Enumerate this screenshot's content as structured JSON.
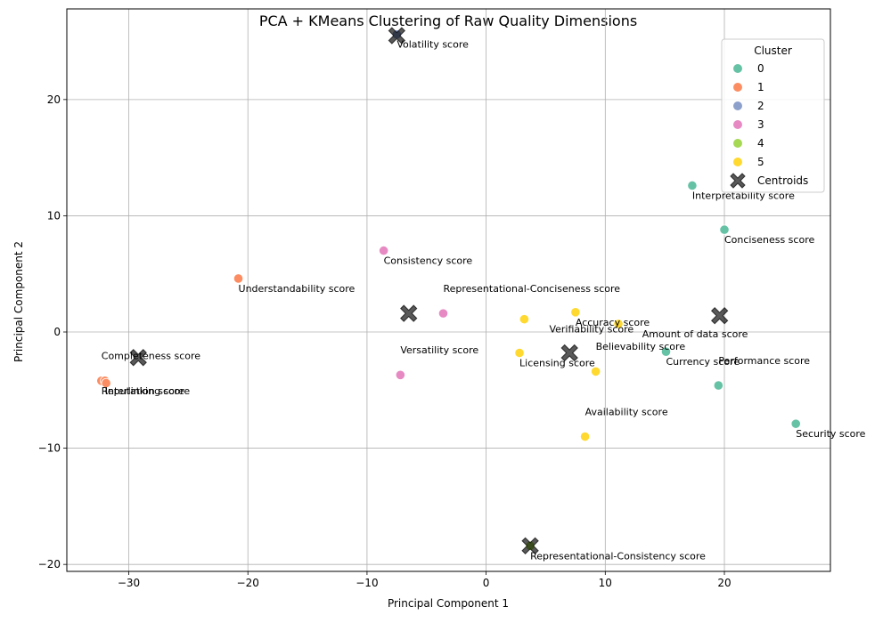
{
  "chart_data": {
    "type": "scatter",
    "title": "PCA + KMeans Clustering of Raw Quality Dimensions",
    "xlabel": "Principal Component 1",
    "ylabel": "Principal Component 2",
    "xlim": [
      -35.2,
      28.9
    ],
    "ylim": [
      -20.6,
      27.8
    ],
    "xticks": [
      -30,
      -20,
      -10,
      0,
      10,
      20
    ],
    "yticks": [
      -20,
      -10,
      0,
      10,
      20
    ],
    "xtick_labels": [
      "−30",
      "−20",
      "−10",
      "0",
      "10",
      "20"
    ],
    "ytick_labels": [
      "−20",
      "−10",
      "0",
      "10",
      "20"
    ],
    "grid": true,
    "legend": {
      "title": "Cluster",
      "placement": "top-right",
      "entries": [
        {
          "label": "0",
          "color": "#66c2a5"
        },
        {
          "label": "1",
          "color": "#fc8d62"
        },
        {
          "label": "2",
          "color": "#8da0cb"
        },
        {
          "label": "3",
          "color": "#e78ac3"
        },
        {
          "label": "4",
          "color": "#a6d854"
        },
        {
          "label": "5",
          "color": "#ffd92f"
        },
        {
          "label": "Centroids",
          "color": "#555555"
        }
      ]
    },
    "cluster_colors": [
      "#66c2a5",
      "#fc8d62",
      "#8da0cb",
      "#e78ac3",
      "#a6d854",
      "#ffd92f"
    ],
    "points": [
      {
        "x": -7.5,
        "y": 25.6,
        "cluster": 2
      },
      {
        "x": 17.3,
        "y": 12.6,
        "cluster": 0
      },
      {
        "x": 20.0,
        "y": 8.8,
        "cluster": 0
      },
      {
        "x": -8.6,
        "y": 7.0,
        "cluster": 3
      },
      {
        "x": -20.8,
        "y": 4.6,
        "cluster": 1
      },
      {
        "x": -3.6,
        "y": 1.6,
        "cluster": 3
      },
      {
        "x": 7.5,
        "y": 1.7,
        "cluster": 5
      },
      {
        "x": 3.2,
        "y": 1.1,
        "cluster": 5
      },
      {
        "x": 11.1,
        "y": 0.7,
        "cluster": 5
      },
      {
        "x": 2.8,
        "y": -1.8,
        "cluster": 5
      },
      {
        "x": 15.1,
        "y": -1.7,
        "cluster": 0
      },
      {
        "x": 9.2,
        "y": -3.4,
        "cluster": 5
      },
      {
        "x": -7.2,
        "y": -3.7,
        "cluster": 3
      },
      {
        "x": -32.3,
        "y": -4.2,
        "cluster": 1
      },
      {
        "x": -32.0,
        "y": -4.2,
        "cluster": 1
      },
      {
        "x": -31.9,
        "y": -4.4,
        "cluster": 1
      },
      {
        "x": 19.5,
        "y": -4.6,
        "cluster": 0
      },
      {
        "x": 26.0,
        "y": -7.9,
        "cluster": 0
      },
      {
        "x": 8.3,
        "y": -9.0,
        "cluster": 5
      },
      {
        "x": 3.7,
        "y": -18.4,
        "cluster": 4
      }
    ],
    "centroids": [
      {
        "x": 19.6,
        "y": 1.4
      },
      {
        "x": -29.2,
        "y": -2.2
      },
      {
        "x": -7.5,
        "y": 25.5
      },
      {
        "x": -6.5,
        "y": 1.6
      },
      {
        "x": 3.7,
        "y": -18.4
      },
      {
        "x": 7.0,
        "y": -1.8
      }
    ],
    "annotations": [
      {
        "text": "Volatility score",
        "x": -7.5,
        "y": 25.6
      },
      {
        "text": "Interpretability score",
        "x": 17.3,
        "y": 12.6
      },
      {
        "text": "Conciseness score",
        "x": 20.0,
        "y": 8.8
      },
      {
        "text": "Consistency score",
        "x": -8.6,
        "y": 7.0
      },
      {
        "text": "Understandability score",
        "x": -20.8,
        "y": 4.6
      },
      {
        "text": "Representational-Conciseness score",
        "x": -3.6,
        "y": 4.6
      },
      {
        "text": "Accuracy score",
        "x": 7.5,
        "y": 1.7
      },
      {
        "text": "Verifiability score",
        "x": 5.3,
        "y": 1.1
      },
      {
        "text": "Amount of data score",
        "x": 13.1,
        "y": 0.7
      },
      {
        "text": "Completeness score",
        "x": -32.3,
        "y": -1.2
      },
      {
        "text": "Versatility score",
        "x": -7.2,
        "y": -0.7
      },
      {
        "text": "Believability score",
        "x": 9.2,
        "y": -0.4
      },
      {
        "text": "Licensing score",
        "x": 2.8,
        "y": -1.8
      },
      {
        "text": "Currency score",
        "x": 15.1,
        "y": -1.7
      },
      {
        "text": "Performance score",
        "x": 19.5,
        "y": -1.6
      },
      {
        "text": "Reputation score",
        "x": -32.3,
        "y": -4.2
      },
      {
        "text": "Interlinking score",
        "x": -32.0,
        "y": -4.2
      },
      {
        "text": "Availability score",
        "x": 8.3,
        "y": -6.0
      },
      {
        "text": "Security score",
        "x": 26.0,
        "y": -7.9
      },
      {
        "text": "Representational-Consistency score",
        "x": 3.7,
        "y": -18.4
      }
    ]
  }
}
